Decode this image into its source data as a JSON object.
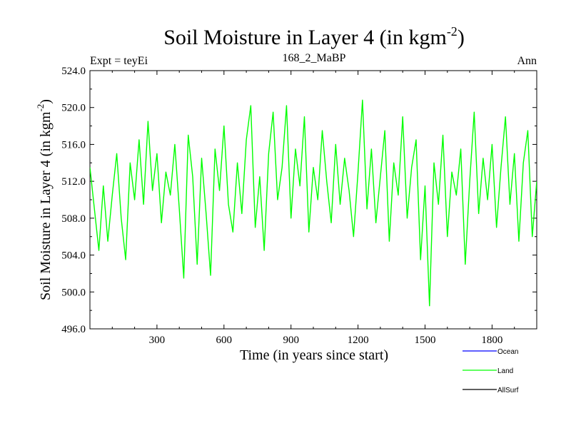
{
  "chart_data": {
    "type": "line",
    "title": "Soil Moisture in Layer 4 (in kgm",
    "title_superscript": "-2",
    "title_suffix": ")",
    "subtitle_left": "Expt = teyEi",
    "subtitle_center": "168_2_MaBP",
    "subtitle_right": "Ann",
    "xlabel": "Time (in years since start)",
    "ylabel": "Soil Moisture in Layer 4 (in kgm",
    "ylabel_superscript": "-2",
    "ylabel_suffix": ")",
    "xlim": [
      0,
      2000
    ],
    "ylim": [
      496.0,
      524.0
    ],
    "xticks": [
      300,
      600,
      900,
      1200,
      1500,
      1800
    ],
    "yticks": [
      496.0,
      500.0,
      504.0,
      508.0,
      512.0,
      516.0,
      520.0,
      524.0
    ],
    "ytick_labels": [
      "496.0",
      "500.0",
      "504.0",
      "508.0",
      "512.0",
      "516.0",
      "520.0",
      "524.0"
    ],
    "legend_position": "bottom-right, outside plot",
    "series": [
      {
        "name": "Ocean",
        "color": "#0000ff",
        "x": [],
        "y": []
      },
      {
        "name": "Land",
        "color": "#00ff00",
        "x": [
          0,
          20,
          40,
          60,
          80,
          100,
          120,
          140,
          160,
          180,
          200,
          220,
          240,
          260,
          280,
          300,
          320,
          340,
          360,
          380,
          400,
          420,
          440,
          460,
          480,
          500,
          520,
          540,
          560,
          580,
          600,
          620,
          640,
          660,
          680,
          700,
          720,
          740,
          760,
          780,
          800,
          820,
          840,
          860,
          880,
          900,
          920,
          940,
          960,
          980,
          1000,
          1020,
          1040,
          1060,
          1080,
          1100,
          1120,
          1140,
          1160,
          1180,
          1200,
          1220,
          1240,
          1260,
          1280,
          1300,
          1320,
          1340,
          1360,
          1380,
          1400,
          1420,
          1440,
          1460,
          1480,
          1500,
          1520,
          1540,
          1560,
          1580,
          1600,
          1620,
          1640,
          1660,
          1680,
          1700,
          1720,
          1740,
          1760,
          1780,
          1800,
          1820,
          1840,
          1860,
          1880,
          1900,
          1920,
          1940,
          1960,
          1980,
          2000
        ],
        "y": [
          513.5,
          509.0,
          504.5,
          511.5,
          505.5,
          510.5,
          515.0,
          508.0,
          503.5,
          514.0,
          510.0,
          516.5,
          509.5,
          518.5,
          511.0,
          515.0,
          507.5,
          513.0,
          510.5,
          516.0,
          509.0,
          501.5,
          517.0,
          512.5,
          503.0,
          514.5,
          508.5,
          501.8,
          515.5,
          511.0,
          518.0,
          509.5,
          506.5,
          514.0,
          508.5,
          516.5,
          520.2,
          507.0,
          512.5,
          504.5,
          515.0,
          519.5,
          510.0,
          513.5,
          520.2,
          508.0,
          515.5,
          511.5,
          519.0,
          506.5,
          513.5,
          510.0,
          517.5,
          512.0,
          507.5,
          516.0,
          509.5,
          514.5,
          511.0,
          506.0,
          513.0,
          520.8,
          509.0,
          515.5,
          507.5,
          512.5,
          517.5,
          505.5,
          514.0,
          510.5,
          519.0,
          508.0,
          513.5,
          516.5,
          503.5,
          511.5,
          498.5,
          514.0,
          509.5,
          517.0,
          506.0,
          513.0,
          510.5,
          515.5,
          503.0,
          512.0,
          519.5,
          508.5,
          514.5,
          510.0,
          516.0,
          507.0,
          513.5,
          519.0,
          509.5,
          515.0,
          505.5,
          514.0,
          517.5,
          506.0,
          512.0
        ]
      },
      {
        "name": "AllSurf",
        "color": "#000000",
        "x": [],
        "y": []
      }
    ]
  }
}
